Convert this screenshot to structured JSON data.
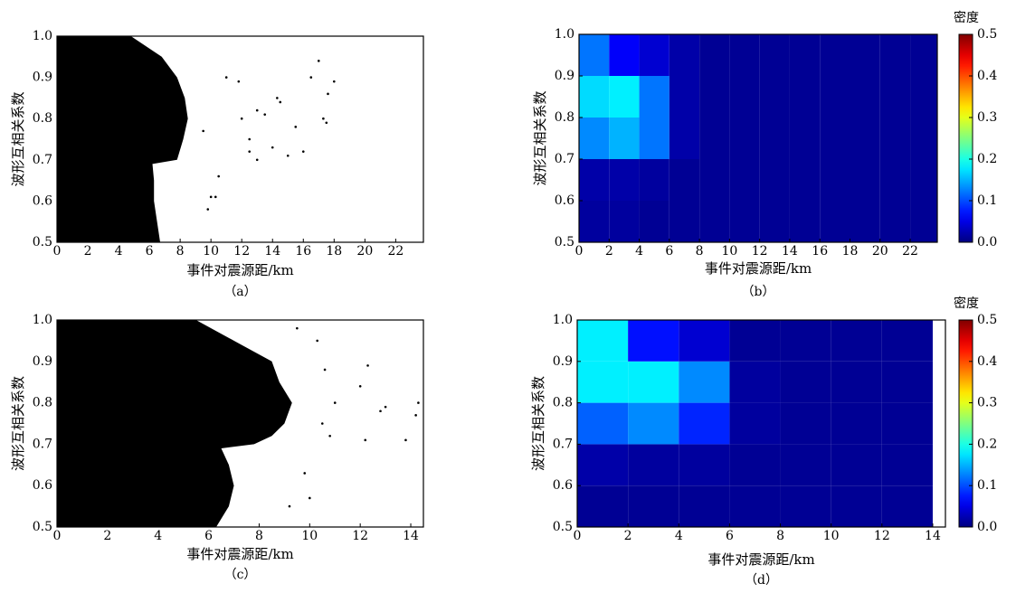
{
  "chart_data": [
    {
      "type": "scatter",
      "caption": "（a）",
      "xlabel": "事件对震源距/km",
      "ylabel": "波形互相关系数",
      "xlim": [
        0,
        23.8
      ],
      "ylim": [
        0.5,
        1.0
      ],
      "xticks": [
        0,
        2,
        4,
        6,
        8,
        10,
        12,
        14,
        16,
        18,
        20,
        22
      ],
      "yticks": [
        0.5,
        0.6,
        0.7,
        0.8,
        0.9,
        {
          "value": 1.0,
          "label": "1.0"
        }
      ],
      "color": "#000000",
      "dense_region": {
        "y": [
          0.5,
          0.55,
          0.6,
          0.65,
          0.69,
          0.7,
          0.75,
          0.8,
          0.85,
          0.9,
          0.95,
          1.0
        ],
        "x": [
          6.7,
          6.5,
          6.3,
          6.3,
          6.2,
          7.8,
          8.2,
          8.5,
          8.3,
          7.8,
          6.8,
          4.8
        ]
      },
      "x": [
        9.5,
        10,
        10.3,
        11.8,
        12,
        12.5,
        13,
        13.5,
        14,
        14.3,
        14.5,
        15,
        15.5,
        16,
        16.5,
        17,
        17.3,
        17.6,
        18,
        17.5,
        12.5,
        11,
        10.5,
        9.8,
        13
      ],
      "y": [
        0.77,
        0.61,
        0.61,
        0.89,
        0.8,
        0.75,
        0.82,
        0.81,
        0.73,
        0.85,
        0.84,
        0.71,
        0.78,
        0.72,
        0.9,
        0.94,
        0.8,
        0.86,
        0.89,
        0.79,
        0.72,
        0.9,
        0.66,
        0.58,
        0.7
      ]
    },
    {
      "type": "heatmap",
      "caption": "（b）",
      "xlabel": "事件对震源距/km",
      "ylabel": "波形互相关系数",
      "xlim": [
        0,
        23.8
      ],
      "ylim": [
        0.5,
        1.0
      ],
      "xticks": [
        0,
        2,
        4,
        6,
        8,
        10,
        12,
        14,
        16,
        18,
        20,
        22
      ],
      "yticks": [
        0.5,
        0.6,
        0.7,
        0.8,
        0.9,
        {
          "value": 1.0,
          "label": "1.0"
        }
      ],
      "x_edges": [
        0,
        2,
        4,
        6,
        8,
        10,
        12,
        14,
        16,
        18,
        20,
        22,
        24
      ],
      "y_edges": [
        0.5,
        0.6,
        0.7,
        0.8,
        0.9,
        1.0
      ],
      "z": [
        [
          0.015,
          0.015,
          0.01,
          0.01,
          0.01,
          0.01,
          0.01,
          0.01,
          0.01,
          0.01,
          0.01,
          0.01
        ],
        [
          0.02,
          0.02,
          0.015,
          0.01,
          0.01,
          0.01,
          0.01,
          0.01,
          0.01,
          0.01,
          0.01,
          0.01
        ],
        [
          0.13,
          0.15,
          0.12,
          0.02,
          0.01,
          0.01,
          0.01,
          0.01,
          0.01,
          0.01,
          0.01,
          0.01
        ],
        [
          0.17,
          0.18,
          0.12,
          0.02,
          0.01,
          0.01,
          0.01,
          0.01,
          0.01,
          0.01,
          0.01,
          0.01
        ],
        [
          0.12,
          0.06,
          0.04,
          0.02,
          0.01,
          0.01,
          0.01,
          0.01,
          0.01,
          0.01,
          0.01,
          0.01
        ]
      ],
      "colorbar": {
        "label": "密度",
        "lim": [
          0,
          0.5
        ],
        "ticks": [
          {
            "value": 0,
            "label": "0.0"
          },
          0.1,
          0.2,
          0.3,
          0.4,
          0.5
        ]
      }
    },
    {
      "type": "scatter",
      "caption": "（c）",
      "xlabel": "事件对震源距/km",
      "ylabel": "波形互相关系数",
      "xlim": [
        0,
        14.5
      ],
      "ylim": [
        0.5,
        1.0
      ],
      "xticks": [
        0,
        2,
        4,
        6,
        8,
        10,
        12,
        14
      ],
      "yticks": [
        0.5,
        0.6,
        0.7,
        0.8,
        0.9,
        {
          "value": 1.0,
          "label": "1.0"
        }
      ],
      "color": "#000000",
      "dense_region": {
        "y": [
          0.5,
          0.55,
          0.6,
          0.65,
          0.69,
          0.7,
          0.72,
          0.75,
          0.8,
          0.85,
          0.9,
          0.95,
          1.0
        ],
        "x": [
          6.3,
          6.8,
          7,
          6.8,
          6.5,
          7.8,
          8.5,
          9,
          9.3,
          8.8,
          8.5,
          7,
          5.5
        ]
      },
      "x": [
        9.8,
        10,
        10.5,
        10.8,
        9.5,
        10.3,
        12,
        12.3,
        12.2,
        12.8,
        13,
        13.8,
        14.2,
        14.3,
        11,
        10.6,
        9.2
      ],
      "y": [
        0.63,
        0.57,
        0.75,
        0.72,
        0.98,
        0.95,
        0.84,
        0.89,
        0.71,
        0.78,
        0.79,
        0.71,
        0.77,
        0.8,
        0.8,
        0.88,
        0.55
      ]
    },
    {
      "type": "heatmap",
      "caption": "（d）",
      "xlabel": "事件对震源距/km",
      "ylabel": "波形互相关系数",
      "xlim": [
        0,
        14.5
      ],
      "ylim": [
        0.5,
        1.0
      ],
      "xticks": [
        0,
        2,
        4,
        6,
        8,
        10,
        12,
        14
      ],
      "yticks": [
        0.5,
        0.6,
        0.7,
        0.8,
        0.9,
        {
          "value": 1.0,
          "label": "1.0"
        }
      ],
      "x_edges": [
        0,
        2,
        4,
        6,
        8,
        10,
        12,
        14
      ],
      "y_edges": [
        0.5,
        0.6,
        0.7,
        0.8,
        0.9,
        1.0
      ],
      "z": [
        [
          0.01,
          0.01,
          0.01,
          0.01,
          0.01,
          0.01,
          0.01
        ],
        [
          0.02,
          0.015,
          0.015,
          0.01,
          0.01,
          0.01,
          0.01
        ],
        [
          0.11,
          0.13,
          0.08,
          0.015,
          0.01,
          0.01,
          0.01
        ],
        [
          0.18,
          0.18,
          0.13,
          0.015,
          0.01,
          0.01,
          0.01
        ],
        [
          0.18,
          0.07,
          0.04,
          0.01,
          0.01,
          0.01,
          0.01
        ]
      ],
      "colorbar": {
        "label": "密度",
        "lim": [
          0,
          0.5
        ],
        "ticks": [
          {
            "value": 0,
            "label": "0.0"
          },
          0.1,
          0.2,
          0.3,
          0.4,
          0.5
        ]
      }
    }
  ]
}
